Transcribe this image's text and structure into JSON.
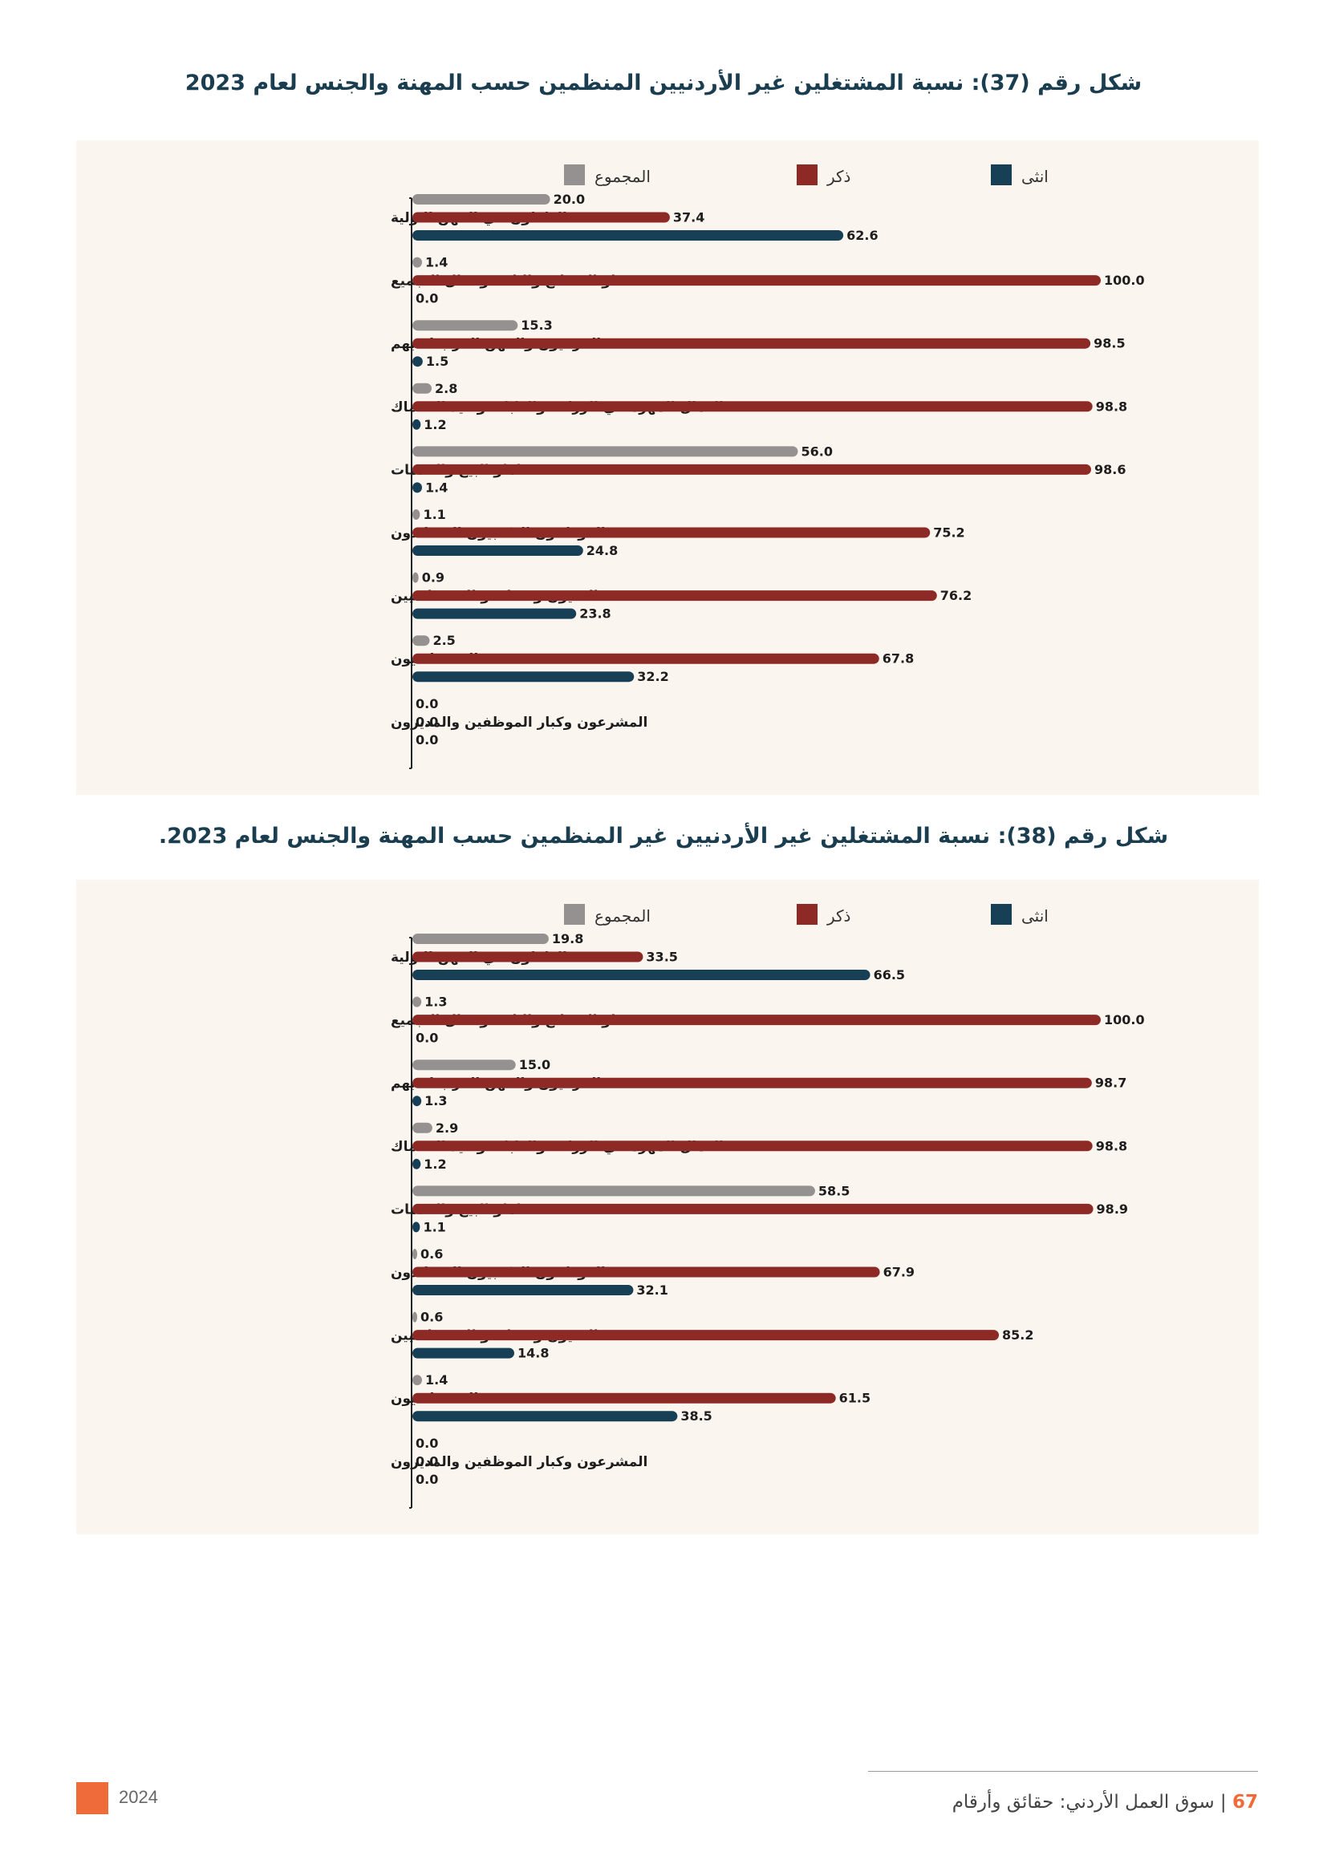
{
  "page": {
    "year": "2024",
    "page_number": "67",
    "separator": "|",
    "publication": "سوق العمل الأردني: حقائق وأرقام"
  },
  "colors": {
    "total": "#959190",
    "male": "#8e2a26",
    "female": "#173f56",
    "accent": "#ef6c3a",
    "title": "#1a3d50",
    "panel": "#fbf5f0"
  },
  "chart_data": [
    {
      "type": "bar",
      "orientation": "horizontal",
      "title": "شكل رقم (37): نسبة المشتغلين غير الأردنيين المنظمين حسب المهنة والجنس لعام 2023",
      "legend": [
        "المجموع",
        "ذكر",
        "انثى"
      ],
      "categories": [
        "العاملون في المهن الاولية",
        "مشغلو المصانع والالات وعمال التجميع",
        "الحرفيون والمهن المرتبطة بهم",
        "العمال المهرة في الزراعة والغابات وصيد الاسماك",
        "عاملو البيع والخدمات",
        "الموظفون المكتبيون المساندون",
        "الفنيون ومساعدو الاختصاصيين",
        "الاختصاصيون",
        "المشرعون وكبار الموظفين والمديرون"
      ],
      "series": [
        {
          "name": "المجموع",
          "color": "#959190",
          "values": [
            20.0,
            1.4,
            15.3,
            2.8,
            56.0,
            1.1,
            0.9,
            2.5,
            0.0
          ],
          "labels": [
            "20.0",
            "1.4",
            "15.3",
            "2.8",
            "56.0",
            "1.1",
            "0.9",
            "2.5",
            "0.0"
          ]
        },
        {
          "name": "ذكر",
          "color": "#8e2a26",
          "values": [
            37.4,
            100.0,
            98.5,
            98.8,
            98.6,
            75.2,
            76.2,
            67.8,
            0.0
          ],
          "labels": [
            "37.4",
            "100.0",
            "98.5",
            "98.8",
            "98.6",
            "75.2",
            "76.2",
            "67.8",
            "0.0"
          ]
        },
        {
          "name": "انثى",
          "color": "#173f56",
          "values": [
            62.6,
            0.0,
            1.5,
            1.2,
            1.4,
            24.8,
            23.8,
            32.2,
            0.0
          ],
          "labels": [
            "62.6",
            "0.0",
            "1.5",
            "1.2",
            "1.4",
            "24.8",
            "23.8",
            "32.2",
            "0.0"
          ]
        }
      ],
      "xlim": [
        0,
        100
      ]
    },
    {
      "type": "bar",
      "orientation": "horizontal",
      "title": "شكل رقم (38): نسبة المشتغلين غير الأردنيين غير المنظمين حسب المهنة والجنس لعام 2023.",
      "legend": [
        "المجموع",
        "ذكر",
        "انثى"
      ],
      "categories": [
        "العاملون في المهن الاولية",
        "مشغلو المصانع والالات وعمال التجميع",
        "الحرفيون والمهن المرتبطة بهم",
        "العمال المهرة في الزراعة والغابات وصيد الاسماك",
        "عاملو البيع والخدمات",
        "الموظفون المكتبيون المساندون",
        "الفنيون ومساعدو الاختصاصيين",
        "الاختصاصيون",
        "المشرعون وكبار الموظفين والمديرون"
      ],
      "series": [
        {
          "name": "المجموع",
          "color": "#959190",
          "values": [
            19.8,
            1.3,
            15.0,
            2.9,
            58.5,
            0.6,
            0.6,
            1.4,
            0.0
          ],
          "labels": [
            "19.8",
            "1.3",
            "15.0",
            "2.9",
            "58.5",
            "0.6",
            "0.6",
            "1.4",
            "0.0"
          ]
        },
        {
          "name": "ذكر",
          "color": "#8e2a26",
          "values": [
            33.5,
            100.0,
            98.7,
            98.8,
            98.9,
            67.9,
            85.2,
            61.5,
            0.0
          ],
          "labels": [
            "33.5",
            "100.0",
            "98.7",
            "98.8",
            "98.9",
            "67.9",
            "85.2",
            "61.5",
            "0.0"
          ]
        },
        {
          "name": "انثى",
          "color": "#173f56",
          "values": [
            66.5,
            0.0,
            1.3,
            1.2,
            1.1,
            32.1,
            14.8,
            38.5,
            0.0
          ],
          "labels": [
            "66.5",
            "0.0",
            "1.3",
            "1.2",
            "1.1",
            "32.1",
            "14.8",
            "38.5",
            "0.0"
          ]
        }
      ],
      "xlim": [
        0,
        100
      ]
    }
  ]
}
